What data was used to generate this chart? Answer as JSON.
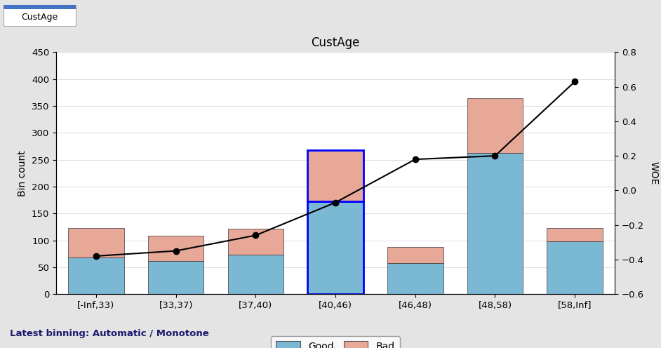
{
  "title": "CustAge",
  "tab_label": "CustAge",
  "ylabel_left": "Bin count",
  "ylabel_right": "WOE",
  "categories": [
    "[-Inf,33)",
    "[33,37)",
    "[37,40)",
    "[40,46)",
    "[46,48)",
    "[48,58)",
    "[58,Inf]"
  ],
  "good_values": [
    68,
    62,
    73,
    173,
    58,
    262,
    98
  ],
  "bad_values": [
    55,
    47,
    48,
    95,
    30,
    103,
    25
  ],
  "woe_values": [
    -0.38,
    -0.35,
    -0.26,
    -0.07,
    0.18,
    0.2,
    0.63
  ],
  "selected_bin_index": 3,
  "good_color": "#7BB8D4",
  "bad_color": "#E8A898",
  "woe_line_color": "#000000",
  "selected_bar_edge_color": "#0000FF",
  "background_color": "#E4E4E4",
  "plot_bg_color": "#FFFFFF",
  "tab_active_color": "#4472C4",
  "tab_top_color": "#4472C4",
  "ylim_left": [
    0,
    450
  ],
  "ylim_right": [
    -0.6,
    0.8
  ],
  "yticks_left": [
    0,
    50,
    100,
    150,
    200,
    250,
    300,
    350,
    400,
    450
  ],
  "yticks_right": [
    -0.6,
    -0.4,
    -0.2,
    0.0,
    0.2,
    0.4,
    0.6,
    0.8
  ],
  "footer_text": "Latest binning: Automatic / Monotone",
  "legend_labels": [
    "Good",
    "Bad"
  ],
  "figsize": [
    9.42,
    4.96
  ],
  "dpi": 100
}
